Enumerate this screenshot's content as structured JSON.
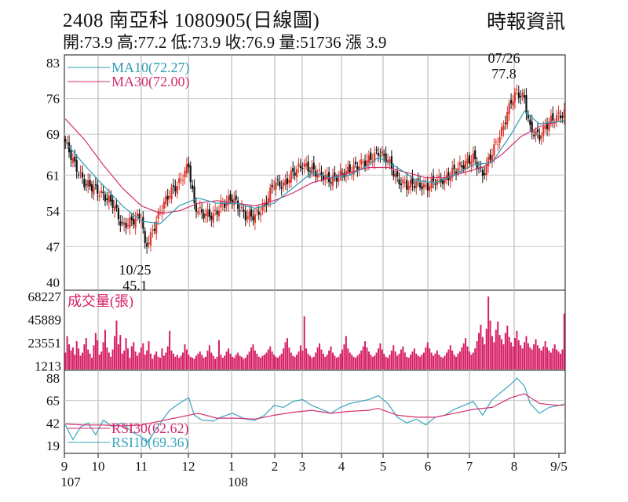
{
  "header": {
    "title": "2408 南亞科 1080905(日線圖)",
    "stats": "開:73.9 高:77.2 低:73.9 收:76.9 量:51736 漲 3.9",
    "source": "時報資訊"
  },
  "colors": {
    "up": "#e0362a",
    "down": "#111111",
    "ma10": "#2e9bb3",
    "ma30": "#d42d6e",
    "volume": "#d61e64",
    "rsi30": "#d42d6e",
    "rsi10": "#3aa5bd"
  },
  "chart_data": [
    {
      "type": "candlestick",
      "title": "2408 南亞科 1080905(日線圖)",
      "ylim": [
        40,
        83
      ],
      "yticks": [
        83,
        76,
        69,
        61,
        54,
        47,
        40
      ],
      "xticks": [
        "9",
        "10",
        "11",
        "12",
        "1",
        "2",
        "3",
        "4",
        "5",
        "6",
        "7",
        "8",
        "9/5"
      ],
      "x_subticks": {
        "9": "107",
        "1": "108"
      },
      "legend": [
        "MA10(72.27)",
        "MA30(72.00)"
      ],
      "annotations": [
        {
          "text": "07/26",
          "text2": "77.8",
          "date": "2019-07-26",
          "value": 77.8
        },
        {
          "text": "10/25",
          "text2": "45.1",
          "date": "2018-10-25",
          "value": 45.1
        }
      ],
      "close_path": [
        [
          0,
          67.5
        ],
        [
          5,
          63
        ],
        [
          10,
          59.5
        ],
        [
          15,
          58.5
        ],
        [
          20,
          57
        ],
        [
          25,
          55.5
        ],
        [
          30,
          51
        ],
        [
          35,
          52
        ],
        [
          40,
          53
        ],
        [
          42,
          47
        ],
        [
          45,
          49
        ],
        [
          50,
          54
        ],
        [
          55,
          57.5
        ],
        [
          60,
          59.5
        ],
        [
          65,
          63
        ],
        [
          68,
          55
        ],
        [
          72,
          53.5
        ],
        [
          78,
          53
        ],
        [
          82,
          55
        ],
        [
          88,
          56.5
        ],
        [
          95,
          53
        ],
        [
          100,
          53
        ],
        [
          105,
          55
        ],
        [
          110,
          59.5
        ],
        [
          115,
          59
        ],
        [
          120,
          61.5
        ],
        [
          125,
          63
        ],
        [
          130,
          62
        ],
        [
          135,
          61
        ],
        [
          140,
          60
        ],
        [
          145,
          61
        ],
        [
          150,
          62
        ],
        [
          155,
          63
        ],
        [
          160,
          64
        ],
        [
          165,
          65.5
        ],
        [
          170,
          64
        ],
        [
          175,
          60
        ],
        [
          180,
          59
        ],
        [
          185,
          59.5
        ],
        [
          190,
          58.5
        ],
        [
          195,
          60
        ],
        [
          200,
          60
        ],
        [
          205,
          62
        ],
        [
          210,
          63
        ],
        [
          215,
          64.5
        ],
        [
          220,
          61
        ],
        [
          225,
          65.5
        ],
        [
          230,
          69.5
        ],
        [
          235,
          75.5
        ],
        [
          238,
          77.2
        ],
        [
          242,
          76
        ],
        [
          245,
          70
        ],
        [
          250,
          68.5
        ],
        [
          255,
          71.5
        ],
        [
          260,
          72.5
        ],
        [
          265,
          73.5
        ],
        [
          270,
          72.5
        ],
        [
          274,
          76.9
        ]
      ],
      "ma10_path": [
        [
          0,
          67.5
        ],
        [
          10,
          63
        ],
        [
          20,
          59
        ],
        [
          30,
          55
        ],
        [
          40,
          52
        ],
        [
          50,
          51.5
        ],
        [
          60,
          55
        ],
        [
          70,
          56.5
        ],
        [
          80,
          55.5
        ],
        [
          90,
          55.5
        ],
        [
          100,
          54.5
        ],
        [
          110,
          55.5
        ],
        [
          120,
          58.5
        ],
        [
          130,
          61.5
        ],
        [
          140,
          60.5
        ],
        [
          150,
          61
        ],
        [
          160,
          63
        ],
        [
          165,
          64.5
        ],
        [
          175,
          62.5
        ],
        [
          185,
          60
        ],
        [
          195,
          59.5
        ],
        [
          205,
          61
        ],
        [
          215,
          63
        ],
        [
          225,
          63.5
        ],
        [
          235,
          69
        ],
        [
          242,
          73.5
        ],
        [
          250,
          71
        ],
        [
          260,
          71.5
        ],
        [
          274,
          72.27
        ]
      ],
      "ma30_path": [
        [
          0,
          72
        ],
        [
          10,
          68
        ],
        [
          20,
          63
        ],
        [
          30,
          58.5
        ],
        [
          40,
          55
        ],
        [
          50,
          53.5
        ],
        [
          60,
          54
        ],
        [
          70,
          55.5
        ],
        [
          80,
          56
        ],
        [
          90,
          55.5
        ],
        [
          100,
          55
        ],
        [
          110,
          56
        ],
        [
          120,
          57.5
        ],
        [
          130,
          59.5
        ],
        [
          140,
          60.5
        ],
        [
          150,
          61.5
        ],
        [
          160,
          62.5
        ],
        [
          170,
          62.5
        ],
        [
          180,
          61.5
        ],
        [
          190,
          60.5
        ],
        [
          200,
          60.5
        ],
        [
          210,
          61.5
        ],
        [
          220,
          62.5
        ],
        [
          230,
          65
        ],
        [
          240,
          68.5
        ],
        [
          250,
          70.5
        ],
        [
          260,
          71.5
        ],
        [
          274,
          72
        ]
      ]
    },
    {
      "type": "bar",
      "title": "成交量(張)",
      "ylim": [
        0,
        68227
      ],
      "yticks": [
        68227,
        45889,
        23551,
        1213
      ],
      "values": [
        14000,
        30000,
        22000,
        16000,
        19000,
        12000,
        25000,
        18000,
        11000,
        14000,
        22000,
        28000,
        17000,
        13000,
        9000,
        21000,
        33000,
        26000,
        12000,
        15000,
        24000,
        36000,
        19000,
        14000,
        10000,
        17000,
        30000,
        45000,
        22000,
        31000,
        13000,
        16000,
        28000,
        18000,
        9000,
        20000,
        24000,
        15000,
        11000,
        14000,
        19000,
        23000,
        12000,
        16000,
        25000,
        13000,
        8000,
        12000,
        15000,
        10000,
        9000,
        18000,
        11000,
        14000,
        20000,
        35000,
        16000,
        13000,
        10000,
        12000,
        9000,
        11000,
        14000,
        22000,
        17000,
        12000,
        10000,
        9000,
        8000,
        11000,
        13000,
        15000,
        12000,
        9000,
        10000,
        16000,
        21000,
        14000,
        11000,
        8000,
        10000,
        26000,
        12000,
        9000,
        11000,
        15000,
        18000,
        13000,
        10000,
        9000,
        12000,
        14000,
        11000,
        10000,
        8000,
        9000,
        12000,
        15000,
        19000,
        22000,
        16000,
        13000,
        10000,
        9000,
        11000,
        12000,
        14000,
        17000,
        20000,
        15000,
        12000,
        10000,
        9000,
        11000,
        13000,
        18000,
        24000,
        28000,
        19000,
        14000,
        11000,
        10000,
        12000,
        15000,
        21000,
        16000,
        49000,
        18000,
        13000,
        11000,
        9000,
        10000,
        14000,
        19000,
        23000,
        17000,
        13000,
        10000,
        12000,
        16000,
        20000,
        14000,
        11000,
        9000,
        10000,
        13000,
        17000,
        22000,
        30000,
        18000,
        14000,
        12000,
        10000,
        9000,
        11000,
        13000,
        16000,
        20000,
        25000,
        19000,
        15000,
        12000,
        10000,
        11000,
        14000,
        18000,
        23000,
        17000,
        13000,
        10000,
        9000,
        12000,
        16000,
        21000,
        15000,
        11000,
        13000,
        17000,
        20000,
        14000,
        10000,
        9000,
        12000,
        15000,
        18000,
        13000,
        11000,
        10000,
        12000,
        14000,
        19000,
        24000,
        18000,
        14000,
        11000,
        13000,
        16000,
        12000,
        10000,
        9000,
        11000,
        14000,
        17000,
        21000,
        16000,
        12000,
        10000,
        13000,
        15000,
        19000,
        23000,
        28000,
        20000,
        15000,
        12000,
        14000,
        18000,
        25000,
        33000,
        41000,
        29000,
        22000,
        37000,
        68227,
        45000,
        30000,
        24000,
        36000,
        44000,
        31000,
        27000,
        22000,
        33000,
        40000,
        29000,
        24000,
        20000,
        28000,
        35000,
        26000,
        21000,
        18000,
        24000,
        30000,
        23000,
        19000,
        17000,
        22000,
        27000,
        21000,
        18000,
        16000,
        20000,
        25000,
        19000,
        16000,
        14000,
        18000,
        22000,
        17000,
        15000,
        13000,
        17000,
        51736
      ]
    },
    {
      "type": "line",
      "title": "RSI",
      "ylim": [
        19,
        88
      ],
      "yticks": [
        88,
        65,
        42,
        19
      ],
      "series": [
        {
          "name": "RSI30(62.62)",
          "path": [
            [
              0,
              41
            ],
            [
              10,
              40
            ],
            [
              20,
              40
            ],
            [
              30,
              39
            ],
            [
              40,
              40
            ],
            [
              50,
              44
            ],
            [
              60,
              48
            ],
            [
              70,
              52
            ],
            [
              80,
              47
            ],
            [
              90,
              47
            ],
            [
              100,
              46
            ],
            [
              110,
              50
            ],
            [
              120,
              53
            ],
            [
              130,
              55
            ],
            [
              140,
              52
            ],
            [
              150,
              54
            ],
            [
              160,
              55
            ],
            [
              165,
              57
            ],
            [
              175,
              50
            ],
            [
              185,
              48
            ],
            [
              195,
              48
            ],
            [
              205,
              52
            ],
            [
              215,
              56
            ],
            [
              225,
              58
            ],
            [
              235,
              68
            ],
            [
              242,
              72
            ],
            [
              250,
              62
            ],
            [
              260,
              60
            ],
            [
              274,
              62.62
            ]
          ]
        },
        {
          "name": "RSI10(69.36)",
          "path": [
            [
              0,
              40
            ],
            [
              4,
              25
            ],
            [
              8,
              38
            ],
            [
              12,
              42
            ],
            [
              16,
              30
            ],
            [
              20,
              45
            ],
            [
              25,
              38
            ],
            [
              30,
              42
            ],
            [
              35,
              33
            ],
            [
              40,
              28
            ],
            [
              43,
              22
            ],
            [
              46,
              30
            ],
            [
              50,
              42
            ],
            [
              55,
              55
            ],
            [
              60,
              62
            ],
            [
              65,
              68
            ],
            [
              68,
              50
            ],
            [
              72,
              45
            ],
            [
              78,
              44
            ],
            [
              82,
              48
            ],
            [
              88,
              52
            ],
            [
              95,
              46
            ],
            [
              100,
              45
            ],
            [
              105,
              50
            ],
            [
              110,
              60
            ],
            [
              115,
              58
            ],
            [
              120,
              64
            ],
            [
              125,
              66
            ],
            [
              130,
              60
            ],
            [
              135,
              56
            ],
            [
              140,
              52
            ],
            [
              145,
              58
            ],
            [
              150,
              62
            ],
            [
              155,
              64
            ],
            [
              160,
              66
            ],
            [
              165,
              70
            ],
            [
              170,
              62
            ],
            [
              175,
              48
            ],
            [
              180,
              42
            ],
            [
              185,
              46
            ],
            [
              190,
              40
            ],
            [
              195,
              48
            ],
            [
              200,
              50
            ],
            [
              205,
              56
            ],
            [
              210,
              60
            ],
            [
              215,
              64
            ],
            [
              220,
              50
            ],
            [
              225,
              66
            ],
            [
              230,
              74
            ],
            [
              235,
              82
            ],
            [
              238,
              88
            ],
            [
              242,
              80
            ],
            [
              245,
              62
            ],
            [
              250,
              52
            ],
            [
              255,
              58
            ],
            [
              260,
              60
            ],
            [
              265,
              62
            ],
            [
              270,
              58
            ],
            [
              274,
              69.36
            ]
          ]
        }
      ]
    }
  ]
}
